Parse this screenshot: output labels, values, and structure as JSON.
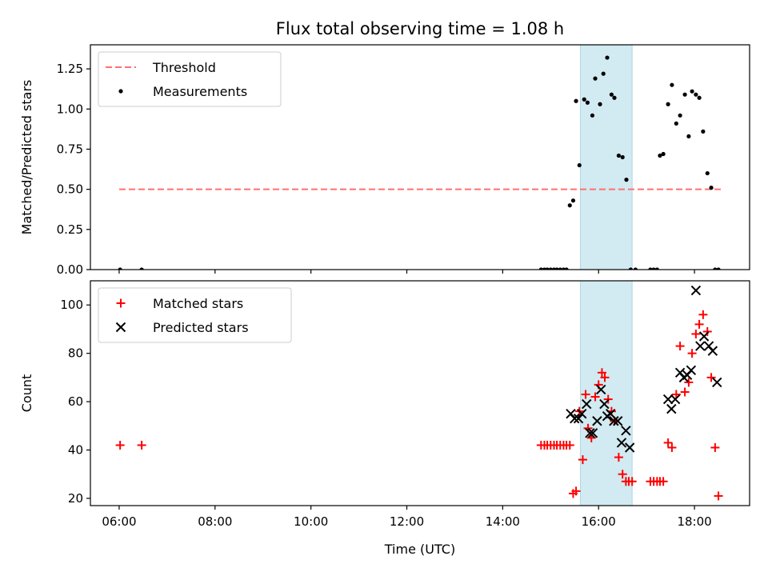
{
  "figure": {
    "title": "Flux total observing time = 1.08 h",
    "xlabel": "Time (UTC)",
    "x_ticks": [
      "06:00",
      "08:00",
      "10:00",
      "12:00",
      "14:00",
      "16:00",
      "18:00"
    ],
    "x_tick_hours": [
      6,
      8,
      10,
      12,
      14,
      16,
      18
    ],
    "xlim_hours": [
      5.4,
      19.15
    ],
    "shaded_span_hours": [
      15.62,
      16.7
    ],
    "colors": {
      "span": "#add8e6",
      "threshold": "#ff7070",
      "matched": "#ff0000",
      "predicted": "#000000",
      "measurement": "#000000"
    }
  },
  "chart_data": [
    {
      "type": "scatter",
      "ylabel": "Matched/Predicted stars",
      "ylim": [
        0,
        1.4
      ],
      "y_ticks": [
        "0.00",
        "0.25",
        "0.50",
        "0.75",
        "1.00",
        "1.25"
      ],
      "y_tick_values": [
        0,
        0.25,
        0.5,
        0.75,
        1.0,
        1.25
      ],
      "legend": {
        "placement": "upper-left"
      },
      "threshold": {
        "name": "Threshold",
        "y": 0.5,
        "x_range_hours": [
          6.0,
          18.55
        ],
        "style": "dashed"
      },
      "series": [
        {
          "name": "Measurements",
          "marker": "dot",
          "x": [
            6.02,
            6.47,
            14.8,
            14.87,
            14.93,
            15.0,
            15.07,
            15.13,
            15.2,
            15.27,
            15.33,
            15.4,
            15.47,
            15.53,
            15.6,
            15.7,
            15.77,
            15.87,
            15.93,
            16.03,
            16.1,
            16.18,
            16.27,
            16.33,
            16.42,
            16.5,
            16.58,
            16.67,
            16.77,
            17.08,
            17.15,
            17.22,
            17.28,
            17.35,
            17.45,
            17.53,
            17.62,
            17.7,
            17.8,
            17.88,
            17.95,
            18.03,
            18.1,
            18.18,
            18.27,
            18.35,
            18.43,
            18.5
          ],
          "y": [
            0.0,
            0.0,
            0.0,
            0.0,
            0.0,
            0.0,
            0.0,
            0.0,
            0.0,
            0.0,
            0.0,
            0.4,
            0.43,
            1.05,
            0.65,
            1.06,
            1.04,
            0.96,
            1.19,
            1.03,
            1.22,
            1.32,
            1.09,
            1.07,
            0.71,
            0.7,
            0.56,
            0.0,
            0.0,
            0.0,
            0.0,
            0.0,
            0.71,
            0.72,
            1.03,
            1.15,
            0.91,
            0.96,
            1.09,
            0.83,
            1.11,
            1.09,
            1.07,
            0.86,
            0.6,
            0.51,
            0.0,
            0.0
          ]
        }
      ]
    },
    {
      "type": "scatter",
      "ylabel": "Count",
      "ylim": [
        17,
        110
      ],
      "y_ticks": [
        "20",
        "40",
        "60",
        "80",
        "100"
      ],
      "y_tick_values": [
        20,
        40,
        60,
        80,
        100
      ],
      "legend": {
        "placement": "upper-left"
      },
      "series": [
        {
          "name": "Matched stars",
          "marker": "plus",
          "x": [
            6.02,
            6.47,
            14.8,
            14.87,
            14.93,
            15.0,
            15.07,
            15.13,
            15.2,
            15.27,
            15.33,
            15.4,
            15.47,
            15.53,
            15.6,
            15.67,
            15.73,
            15.78,
            15.85,
            15.93,
            16.0,
            16.07,
            16.13,
            16.2,
            16.27,
            16.33,
            16.42,
            16.5,
            16.57,
            16.63,
            16.7,
            17.08,
            17.15,
            17.22,
            17.28,
            17.35,
            17.45,
            17.53,
            17.62,
            17.7,
            17.8,
            17.88,
            17.95,
            18.03,
            18.1,
            18.18,
            18.27,
            18.35,
            18.43,
            18.5
          ],
          "y": [
            42,
            42,
            42,
            42,
            42,
            42,
            42,
            42,
            42,
            42,
            42,
            42,
            22,
            23,
            56,
            36,
            63,
            49,
            45,
            62,
            67,
            72,
            70,
            61,
            56,
            52,
            37,
            30,
            27,
            27,
            27,
            27,
            27,
            27,
            27,
            27,
            43,
            41,
            63,
            83,
            64,
            68,
            80,
            88,
            92,
            96,
            89,
            70,
            41,
            21
          ]
        },
        {
          "name": "Predicted stars",
          "marker": "x",
          "x": [
            15.42,
            15.5,
            15.58,
            15.65,
            15.75,
            15.82,
            15.88,
            15.97,
            16.05,
            16.12,
            16.18,
            16.25,
            16.32,
            16.4,
            16.48,
            16.57,
            16.65,
            17.45,
            17.52,
            17.6,
            17.7,
            17.78,
            17.85,
            17.93,
            18.03,
            18.12,
            18.2,
            18.3,
            18.38,
            18.47
          ],
          "y": [
            55,
            53,
            53,
            55,
            59,
            47,
            47,
            52,
            65,
            59,
            54,
            55,
            52,
            52,
            43,
            48,
            41,
            61,
            57,
            61,
            72,
            70,
            71,
            73,
            106,
            83,
            87,
            83,
            81,
            68
          ]
        }
      ]
    }
  ]
}
